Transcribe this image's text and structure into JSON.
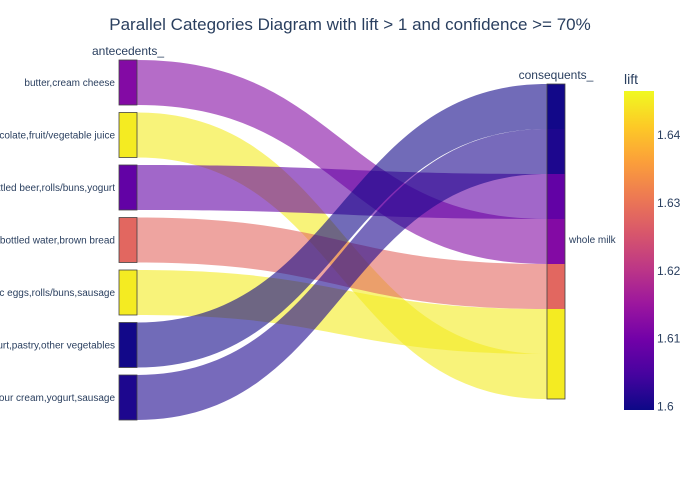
{
  "chart_data": {
    "type": "parallel_categories",
    "title": "Parallel Categories Diagram with lift > 1 and confidence >= 70%",
    "dimensions": [
      "antecedents_",
      "consequents_"
    ],
    "antecedent_categories": [
      "butter,cream cheese",
      "chocolate,fruit/vegetable juice",
      "bottled beer,rolls/buns,yogurt",
      "bottled water,brown bread",
      "domestic eggs,rolls/buns,sausage",
      "yogurt,pastry,other vegetables",
      "sour cream,yogurt,sausage"
    ],
    "antecedent_labels_shown": [
      "butter,cream cheese",
      "colate,fruit/vegetable juice",
      "ttled beer,rolls/buns,yogurt",
      "bottled water,brown bread",
      "c eggs,rolls/buns,sausage",
      "urt,pastry,other vegetables",
      "our cream,yogurt,sausage"
    ],
    "consequent_categories": [
      "whole milk"
    ],
    "rules": [
      {
        "antecedent": "butter,cream cheese",
        "consequent": "whole milk",
        "lift": 1.612
      },
      {
        "antecedent": "chocolate,fruit/vegetable juice",
        "consequent": "whole milk",
        "lift": 1.645
      },
      {
        "antecedent": "bottled beer,rolls/buns,yogurt",
        "consequent": "whole milk",
        "lift": 1.608
      },
      {
        "antecedent": "bottled water,brown bread",
        "consequent": "whole milk",
        "lift": 1.628
      },
      {
        "antecedent": "domestic eggs,rolls/buns,sausage",
        "consequent": "whole milk",
        "lift": 1.645
      },
      {
        "antecedent": "yogurt,pastry,other vegetables",
        "consequent": "whole milk",
        "lift": 1.6
      },
      {
        "antecedent": "sour cream,yogurt,sausage",
        "consequent": "whole milk",
        "lift": 1.601
      }
    ],
    "consequent_stack_order": [
      "yogurt,pastry,other vegetables",
      "sour cream,yogurt,sausage",
      "bottled beer,rolls/buns,yogurt",
      "butter,cream cheese",
      "bottled water,brown bread",
      "domestic eggs,rolls/buns,sausage",
      "chocolate,fruit/vegetable juice"
    ],
    "colorbar": {
      "title": "lift",
      "range": [
        1.5995,
        1.6465
      ],
      "ticks": [
        1.6,
        1.61,
        1.62,
        1.63,
        1.64
      ],
      "tick_labels": [
        "1.6",
        "1.61",
        "1.62",
        "1.63",
        "1.64"
      ],
      "colorscale": "plasma"
    }
  }
}
